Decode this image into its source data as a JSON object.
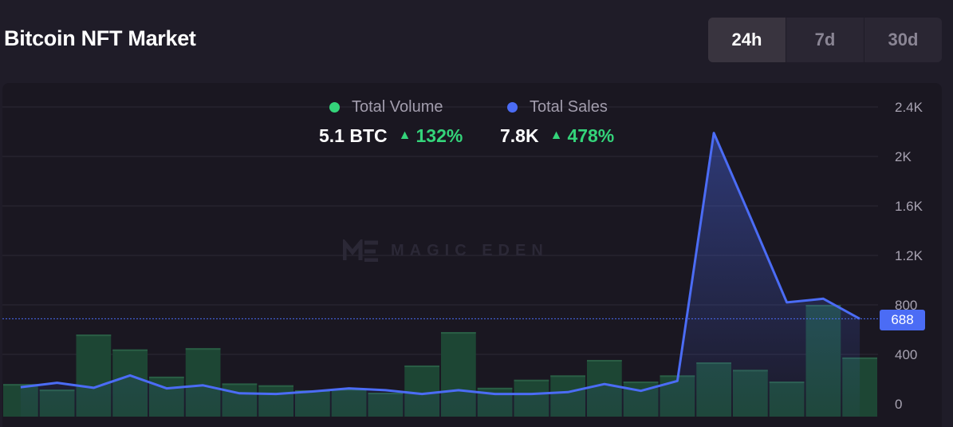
{
  "header": {
    "title": "Bitcoin NFT Market",
    "ranges": [
      {
        "label": "24h",
        "active": true
      },
      {
        "label": "7d",
        "active": false
      },
      {
        "label": "30d",
        "active": false
      }
    ]
  },
  "legend": {
    "volume": {
      "label": "Total Volume",
      "value": "5.1 BTC",
      "change": "132%",
      "color": "#34d47a"
    },
    "sales": {
      "label": "Total Sales",
      "value": "7.8K",
      "change": "478%",
      "color": "#4b6cf5"
    },
    "up_arrow": "▲"
  },
  "watermark": "MAGIC EDEN",
  "current_value_label": "688",
  "colors": {
    "background": "#1f1c28",
    "panel": "#1a1721",
    "bar": "#1d4634",
    "bar_top": "#2a5e45",
    "line": "#4b6cf5",
    "positive": "#34d47a"
  },
  "chart_data": {
    "type": "bar+line",
    "y_ticks": [
      "0",
      "400",
      "800",
      "1.2K",
      "1.6K",
      "2K",
      "2.4K"
    ],
    "ylim": [
      0,
      2400
    ],
    "series": [
      {
        "name": "Total Volume",
        "type": "bar",
        "values": [
          160,
          115,
          560,
          440,
          220,
          450,
          165,
          150,
          110,
          120,
          90,
          310,
          580,
          130,
          195,
          230,
          355,
          180,
          230,
          335,
          275,
          180,
          800,
          375
        ]
      },
      {
        "name": "Total Sales",
        "type": "area-line",
        "values": [
          135,
          170,
          130,
          230,
          125,
          150,
          85,
          80,
          100,
          125,
          110,
          80,
          110,
          80,
          80,
          95,
          160,
          105,
          185,
          2190,
          1510,
          820,
          850,
          688
        ]
      }
    ],
    "current_value": 688
  }
}
